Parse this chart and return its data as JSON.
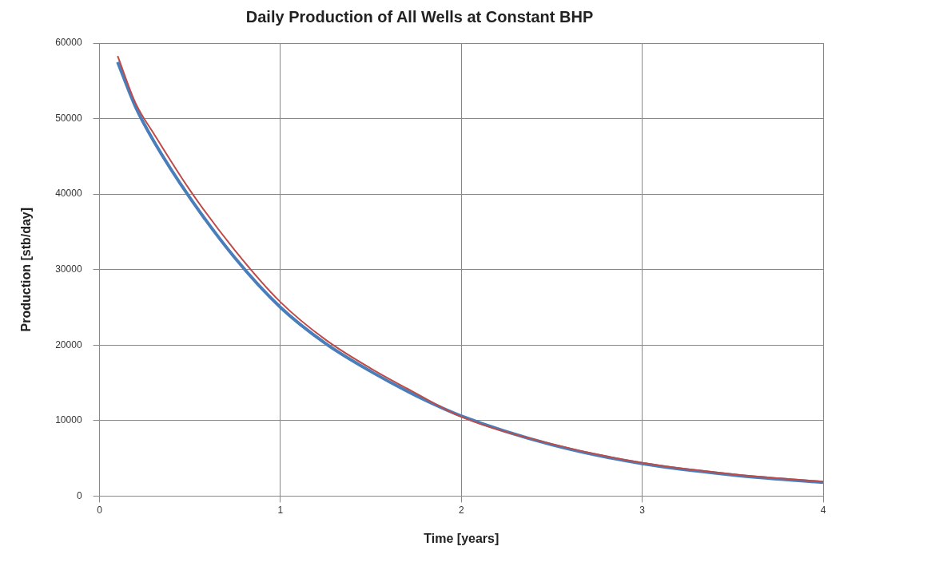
{
  "chart_data": {
    "type": "line",
    "title": "Daily Production of All Wells at Constant BHP",
    "xlabel": "Time [years]",
    "ylabel": "Production [stb/day]",
    "xlim": [
      0,
      4
    ],
    "xticks": [
      0,
      1,
      2,
      3,
      4
    ],
    "ylim": [
      0,
      60000
    ],
    "yticks": [
      0,
      10000,
      20000,
      30000,
      40000,
      50000,
      60000
    ],
    "grid": true,
    "marker": "none",
    "line_style": "solid",
    "series": [
      {
        "color": "#4a7ebb",
        "x": [
          0.1,
          0.2,
          0.3,
          0.5,
          0.75,
          1,
          1.25,
          1.5,
          1.75,
          2,
          2.5,
          3,
          3.5,
          4
        ],
        "values": [
          57500,
          51500,
          47000,
          39500,
          31500,
          25000,
          20200,
          16500,
          13300,
          10600,
          6800,
          4300,
          2800,
          1800
        ]
      },
      {
        "color": "#be4b48",
        "x": [
          0.1,
          0.2,
          0.3,
          0.5,
          0.75,
          1,
          1.25,
          1.5,
          1.75,
          2,
          2.5,
          3,
          3.5,
          4
        ],
        "values": [
          58300,
          52000,
          48000,
          40500,
          32500,
          25700,
          20700,
          16900,
          13600,
          10500,
          6900,
          4400,
          2900,
          1900
        ]
      }
    ]
  }
}
